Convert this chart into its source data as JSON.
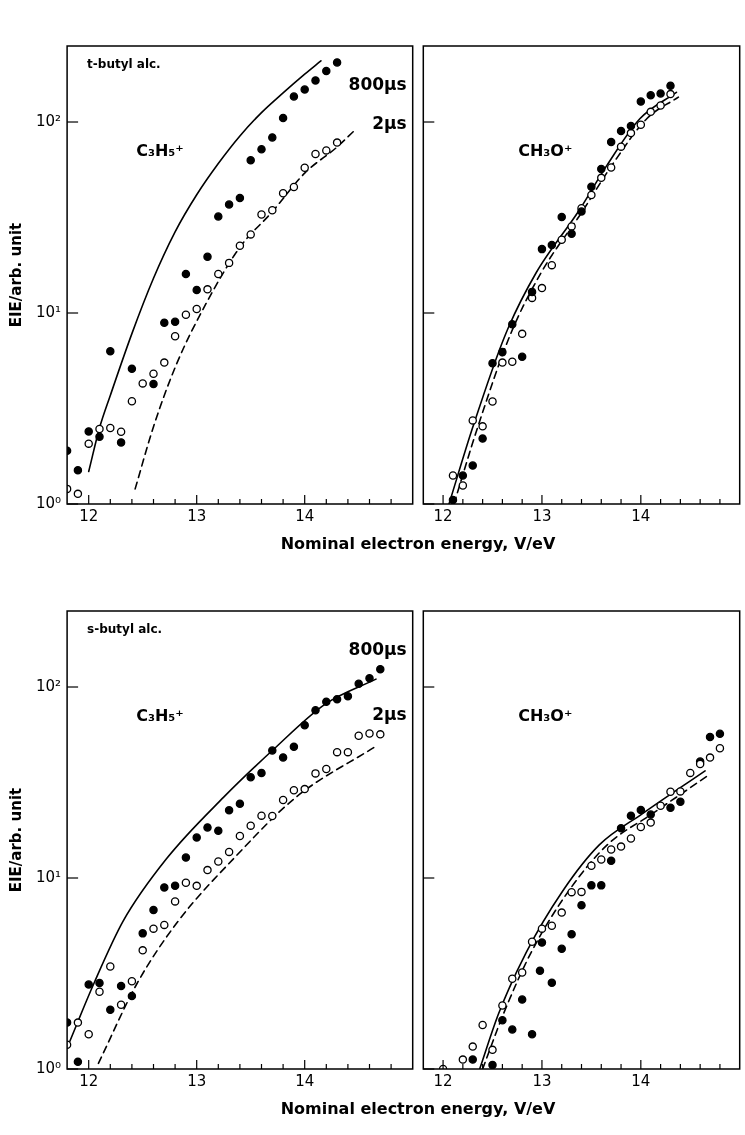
{
  "chart_data": [
    {
      "type": "scatter",
      "log": "y",
      "xlabel": "Nominal electron energy, V/eV",
      "ylabel": "EIE/arb. unit",
      "xlim": [
        11.8,
        15
      ],
      "ylim": [
        1,
        250
      ],
      "xticks": [
        12,
        {
          "value": 12.2,
          "label": null
        },
        {
          "value": 12.4,
          "label": null
        },
        {
          "value": 12.6,
          "label": null
        },
        {
          "value": 12.8,
          "label": null
        },
        13,
        {
          "value": 13.2,
          "label": null
        },
        {
          "value": 13.4,
          "label": null
        },
        {
          "value": 13.6,
          "label": null
        },
        {
          "value": 13.8,
          "label": null
        },
        14,
        {
          "value": 14.2,
          "label": null
        },
        {
          "value": 14.4,
          "label": null
        },
        {
          "value": 14.6,
          "label": null
        },
        {
          "value": 14.8,
          "label": null
        }
      ],
      "yticks": [
        {
          "value": 1,
          "label": "10⁰"
        },
        {
          "value": 10,
          "label": "10¹"
        },
        {
          "value": 100,
          "label": "10²"
        }
      ],
      "annotations": [
        "t-butyl alc.",
        "C₃H₅⁺"
      ],
      "series": [
        {
          "name": "800μs",
          "color": "#000000",
          "marker": "circle",
          "x": [
            11.8,
            11.9,
            12.0,
            12.1,
            12.2,
            12.3,
            12.4,
            12.6,
            12.7,
            12.8,
            12.9,
            13.0,
            13.1,
            13.2,
            13.3,
            13.4,
            13.5,
            13.6,
            13.7,
            13.8,
            13.9,
            14.0,
            14.1,
            14.2,
            14.3
          ],
          "values": [
            1.9,
            1.5,
            2.4,
            2.25,
            6.3,
            2.1,
            5.1,
            4.25,
            8.9,
            9.0,
            16,
            13.2,
            19.7,
            32,
            37,
            40,
            63,
            72,
            83,
            105,
            136,
            148,
            165,
            185,
            205
          ]
        },
        {
          "name": "2μs",
          "color": "#ffffff",
          "marker": "circle",
          "x": [
            11.8,
            11.9,
            12.0,
            12.1,
            12.2,
            12.3,
            12.4,
            12.5,
            12.6,
            12.7,
            12.8,
            12.9,
            13.0,
            13.1,
            13.2,
            13.3,
            13.4,
            13.5,
            13.6,
            13.7,
            13.8,
            13.9,
            14.0,
            14.1,
            14.2,
            14.3
          ],
          "values": [
            1.2,
            1.13,
            2.07,
            2.47,
            2.5,
            2.39,
            3.45,
            4.28,
            4.81,
            5.5,
            7.55,
            9.8,
            10.5,
            13.3,
            16,
            18.3,
            22.5,
            25.8,
            32.8,
            34.5,
            42.4,
            45.7,
            57.6,
            68,
            71,
            78
          ]
        },
        {
          "type": "line",
          "color": "#000000",
          "marker": "none",
          "line_style": "solid",
          "x": [
            12.0,
            12.1,
            12.2,
            12.4,
            12.6,
            12.8,
            13.0,
            13.2,
            13.4,
            13.6,
            13.8,
            14.0,
            14.15
          ],
          "values": [
            1.48,
            2.5,
            3.7,
            7.8,
            15.2,
            26.6,
            41.6,
            60.6,
            84.5,
            112,
            142,
            178,
            209
          ]
        },
        {
          "type": "line",
          "color": "#000000",
          "marker": "none",
          "line_style": "dashed",
          "x": [
            12.43,
            12.6,
            12.81,
            13.09,
            13.4,
            13.7,
            14.0,
            14.3,
            14.45
          ],
          "values": [
            1.2,
            2.54,
            5.35,
            11.3,
            22.1,
            33.9,
            54,
            74,
            89
          ]
        }
      ]
    },
    {
      "type": "scatter",
      "log": "y",
      "tick_labels": "x",
      "xlim": [
        11.8,
        15
      ],
      "ylim": [
        1,
        250
      ],
      "xticks": [
        12,
        {
          "value": 12.2,
          "label": null
        },
        {
          "value": 12.4,
          "label": null
        },
        {
          "value": 12.6,
          "label": null
        },
        {
          "value": 12.8,
          "label": null
        },
        13,
        {
          "value": 13.2,
          "label": null
        },
        {
          "value": 13.4,
          "label": null
        },
        {
          "value": 13.6,
          "label": null
        },
        {
          "value": 13.8,
          "label": null
        },
        14,
        {
          "value": 14.2,
          "label": null
        },
        {
          "value": 14.4,
          "label": null
        },
        {
          "value": 14.6,
          "label": null
        },
        {
          "value": 14.8,
          "label": null
        }
      ],
      "yticks": [
        {
          "value": 1,
          "label": null
        },
        {
          "value": 10,
          "label": null
        },
        {
          "value": 100,
          "label": null
        }
      ],
      "annotations": [
        "CH₃O⁺"
      ],
      "series": [
        {
          "color": "#000000",
          "marker": "circle",
          "x": [
            12.1,
            12.2,
            12.3,
            12.4,
            12.5,
            12.6,
            12.7,
            12.8,
            12.9,
            13.0,
            13.1,
            13.2,
            13.3,
            13.4,
            13.5,
            13.6,
            13.7,
            13.8,
            13.9,
            14.0,
            14.1,
            14.2,
            14.3
          ],
          "values": [
            1.05,
            1.41,
            1.59,
            2.2,
            5.46,
            6.24,
            8.73,
            5.9,
            12.9,
            21.6,
            22.7,
            31.8,
            26,
            34,
            45.8,
            56.8,
            78.5,
            89.8,
            95.3,
            128,
            138,
            141,
            155
          ]
        },
        {
          "color": "#ffffff",
          "marker": "circle",
          "x": [
            12.1,
            12.2,
            12.3,
            12.4,
            12.5,
            12.6,
            12.7,
            12.8,
            12.9,
            13.0,
            13.1,
            13.2,
            13.3,
            13.4,
            13.5,
            13.6,
            13.7,
            13.8,
            13.9,
            14.0,
            14.1,
            14.2,
            14.3
          ],
          "values": [
            1.41,
            1.25,
            2.74,
            2.55,
            3.44,
            5.5,
            5.56,
            7.78,
            12,
            13.5,
            17.8,
            24.2,
            28.4,
            35.4,
            41.5,
            51,
            57.8,
            74.3,
            87.5,
            96.7,
            113,
            122,
            140
          ]
        },
        {
          "type": "line",
          "color": "#000000",
          "marker": "none",
          "line_style": "solid",
          "x": [
            12.06,
            12.3,
            12.63,
            12.94,
            13.37,
            13.66,
            13.99,
            14.36
          ],
          "values": [
            1.0,
            2.52,
            7.7,
            16.2,
            34.1,
            59.6,
            104,
            143
          ]
        },
        {
          "type": "line",
          "color": "#000000",
          "marker": "none",
          "line_style": "dashed",
          "x": [
            12.11,
            12.35,
            12.68,
            12.99,
            13.41,
            13.71,
            14.06,
            14.38
          ],
          "values": [
            1.0,
            2.52,
            7.7,
            16.2,
            34.1,
            59.6,
            104,
            135
          ]
        }
      ]
    },
    {
      "type": "scatter",
      "log": "y",
      "xlabel": "Nominal electron energy, V/eV",
      "ylabel": "EIE/arb. unit",
      "xlim": [
        11.8,
        15
      ],
      "ylim": [
        1,
        250
      ],
      "xticks": [
        12,
        {
          "value": 12.2,
          "label": null
        },
        {
          "value": 12.4,
          "label": null
        },
        {
          "value": 12.6,
          "label": null
        },
        {
          "value": 12.8,
          "label": null
        },
        13,
        {
          "value": 13.2,
          "label": null
        },
        {
          "value": 13.4,
          "label": null
        },
        {
          "value": 13.6,
          "label": null
        },
        {
          "value": 13.8,
          "label": null
        },
        14,
        {
          "value": 14.2,
          "label": null
        },
        {
          "value": 14.4,
          "label": null
        },
        {
          "value": 14.6,
          "label": null
        },
        {
          "value": 14.8,
          "label": null
        }
      ],
      "yticks": [
        {
          "value": 1,
          "label": "10⁰"
        },
        {
          "value": 10,
          "label": "10¹"
        },
        {
          "value": 100,
          "label": "10²"
        }
      ],
      "annotations": [
        "s-butyl alc.",
        "C₃H₅⁺"
      ],
      "series": [
        {
          "name": "800μs",
          "color": "#000000",
          "marker": "circle",
          "x": [
            11.8,
            11.9,
            12.0,
            12.1,
            12.2,
            12.3,
            12.4,
            12.5,
            12.6,
            12.7,
            12.8,
            12.9,
            13.0,
            13.1,
            13.2,
            13.3,
            13.4,
            13.5,
            13.6,
            13.7,
            13.8,
            13.9,
            14.0,
            14.1,
            14.2,
            14.3,
            14.4,
            14.5,
            14.6,
            14.7
          ],
          "values": [
            1.75,
            1.09,
            2.77,
            2.82,
            2.04,
            2.72,
            2.41,
            5.13,
            6.79,
            8.93,
            9.12,
            12.8,
            16.3,
            18.4,
            17.7,
            22.6,
            24.5,
            33.7,
            35.5,
            46.5,
            42.8,
            48.6,
            63.1,
            75.5,
            83.6,
            86.4,
            89.4,
            104,
            111,
            124
          ]
        },
        {
          "name": "2μs",
          "color": "#ffffff",
          "marker": "circle",
          "x": [
            11.8,
            11.9,
            12.0,
            12.1,
            12.2,
            12.3,
            12.4,
            12.5,
            12.6,
            12.7,
            12.8,
            12.9,
            13.0,
            13.1,
            13.2,
            13.3,
            13.4,
            13.5,
            13.6,
            13.7,
            13.8,
            13.9,
            14.0,
            14.1,
            14.2,
            14.3,
            14.4,
            14.5,
            14.6,
            14.7
          ],
          "values": [
            1.34,
            1.75,
            1.52,
            2.54,
            3.44,
            2.17,
            2.88,
            4.18,
            5.43,
            5.68,
            7.54,
            9.44,
            9.1,
            11,
            12.2,
            13.7,
            16.6,
            18.8,
            21.2,
            21.1,
            25.6,
            28.8,
            29.2,
            35.3,
            37.2,
            45.6,
            45.6,
            55.6,
            57.1,
            56.5
          ]
        },
        {
          "type": "line",
          "color": "#000000",
          "marker": "none",
          "line_style": "solid",
          "x": [
            11.8,
            12.05,
            12.32,
            12.72,
            13.25,
            13.7,
            14.19,
            14.66
          ],
          "values": [
            1.29,
            2.82,
            5.96,
            12.6,
            26.5,
            46.5,
            81.4,
            110
          ]
        },
        {
          "type": "line",
          "color": "#000000",
          "marker": "none",
          "line_style": "dashed",
          "x": [
            12.09,
            12.45,
            12.83,
            13.34,
            13.92,
            14.65
          ],
          "values": [
            1.07,
            2.82,
            5.96,
            12.6,
            26.5,
            48.6
          ]
        }
      ]
    },
    {
      "type": "scatter",
      "log": "y",
      "tick_labels": "x",
      "xlim": [
        11.8,
        15
      ],
      "ylim": [
        1,
        250
      ],
      "xticks": [
        12,
        {
          "value": 12.2,
          "label": null
        },
        {
          "value": 12.4,
          "label": null
        },
        {
          "value": 12.6,
          "label": null
        },
        {
          "value": 12.8,
          "label": null
        },
        13,
        {
          "value": 13.2,
          "label": null
        },
        {
          "value": 13.4,
          "label": null
        },
        {
          "value": 13.6,
          "label": null
        },
        {
          "value": 13.8,
          "label": null
        },
        14,
        {
          "value": 14.2,
          "label": null
        },
        {
          "value": 14.4,
          "label": null
        },
        {
          "value": 14.6,
          "label": null
        },
        {
          "value": 14.8,
          "label": null
        }
      ],
      "yticks": [
        {
          "value": 1,
          "label": null
        },
        {
          "value": 10,
          "label": null
        },
        {
          "value": 100,
          "label": null
        }
      ],
      "annotations": [
        "CH₃O⁺"
      ],
      "series": [
        {
          "color": "#ffffff",
          "marker": "circle",
          "x": [
            12.0,
            12.2,
            12.3,
            12.4,
            12.5,
            12.6,
            12.7,
            12.8,
            12.9,
            13.0,
            13.1,
            13.2,
            13.3,
            13.4,
            13.5,
            13.6,
            13.7,
            13.8,
            13.9,
            14.0,
            14.1,
            14.2,
            14.3,
            14.4,
            14.5,
            14.6,
            14.7,
            14.8
          ],
          "values": [
            1.0,
            1.12,
            1.31,
            1.7,
            1.26,
            2.15,
            2.97,
            3.2,
            4.64,
            5.43,
            5.62,
            6.59,
            8.43,
            8.46,
            11.6,
            12.5,
            14.1,
            14.6,
            16.1,
            18.5,
            19.5,
            23.9,
            28.3,
            28.4,
            35.5,
            39.5,
            42.7,
            47.8
          ]
        },
        {
          "color": "#000000",
          "marker": "circle",
          "x": [
            12.3,
            12.5,
            12.6,
            12.7,
            12.8,
            12.9,
            12.98,
            13.0,
            13.1,
            13.2,
            13.3,
            13.4,
            13.5,
            13.6,
            13.7,
            13.8,
            13.9,
            14.0,
            14.1,
            14.3,
            14.4,
            14.6,
            14.7,
            14.8
          ],
          "values": [
            1.12,
            1.05,
            1.8,
            1.61,
            2.31,
            1.52,
            3.27,
            4.59,
            2.83,
            4.26,
            5.08,
            7.21,
            9.15,
            9.15,
            12.3,
            18.2,
            21.2,
            22.7,
            21.5,
            23.3,
            25.1,
            40.7,
            54.8,
            56.9
          ]
        },
        {
          "type": "line",
          "color": "#000000",
          "marker": "none",
          "line_style": "solid",
          "x": [
            12.37,
            12.56,
            12.84,
            13.21,
            13.58,
            14.01,
            14.65
          ],
          "values": [
            1.0,
            1.94,
            4.07,
            8.55,
            14.9,
            21.6,
            36.4
          ]
        },
        {
          "type": "line",
          "color": "#000000",
          "marker": "none",
          "line_style": "dashed",
          "x": [
            12.4,
            12.61,
            12.89,
            13.27,
            13.66,
            14.11,
            14.68
          ],
          "values": [
            1.0,
            1.94,
            4.07,
            8.55,
            14.9,
            21.6,
            34.4
          ]
        }
      ]
    }
  ]
}
